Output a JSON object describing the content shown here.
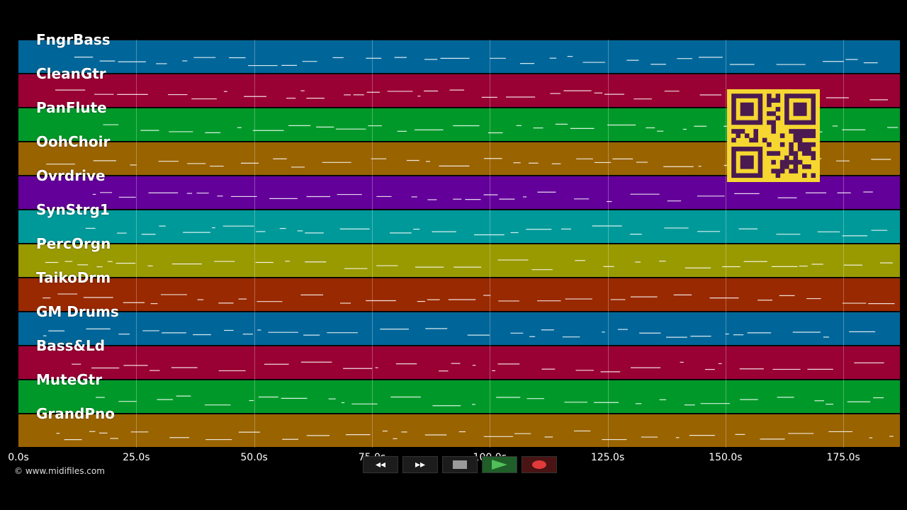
{
  "tracks": [
    {
      "name": "FngrBass",
      "color": "#006699"
    },
    {
      "name": "CleanGtr",
      "color": "#990033"
    },
    {
      "name": "PanFlute",
      "color": "#009929"
    },
    {
      "name": "OohChoir",
      "color": "#996300"
    },
    {
      "name": "Ovrdrive",
      "color": "#630099"
    },
    {
      "name": "SynStrg1",
      "color": "#009999"
    },
    {
      "name": "PercOrgn",
      "color": "#999900"
    },
    {
      "name": "TaikoDrm",
      "color": "#992900"
    },
    {
      "name": "GM Drums",
      "color": "#006699"
    },
    {
      "name": "Bass&Ld",
      "color": "#990033"
    },
    {
      "name": "MuteGtr",
      "color": "#009929"
    },
    {
      "name": "GrandPno",
      "color": "#996300"
    }
  ],
  "timeline": {
    "max_seconds": 187,
    "ticks": [
      "0.0s",
      "25.0s",
      "50.0s",
      "75.0s",
      "100.0s",
      "125.0s",
      "150.0s",
      "175.0s"
    ],
    "tick_values": [
      0,
      25,
      50,
      75,
      100,
      125,
      150,
      175
    ]
  },
  "copyright": "© www.midifiles.com",
  "transport": {
    "rewind": "◂◂",
    "forward": "▸▸",
    "stop": "stop",
    "play": "play",
    "record": "record"
  }
}
